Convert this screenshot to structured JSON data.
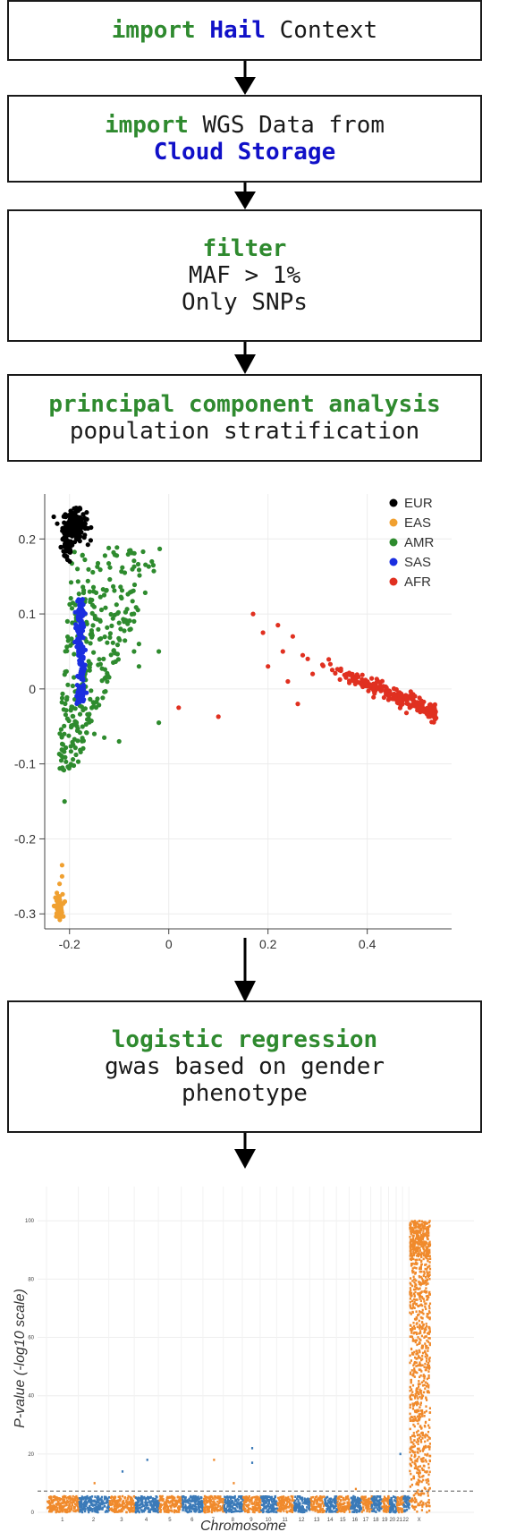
{
  "steps": [
    {
      "kw": "import",
      "rest": " ",
      "hl": "Hail",
      "tail": " Context"
    },
    {
      "kw": "import",
      "line1_rest": " WGS Data from",
      "line2": "Cloud Storage"
    },
    {
      "kw": "filter",
      "line2": "MAF > 1%",
      "line3": "Only SNPs"
    },
    {
      "kw": "principal component analysis",
      "line2": "population stratification"
    },
    {
      "kw": "logistic regression",
      "line2": "gwas based on gender",
      "line3": "phenotype"
    }
  ],
  "colors": {
    "EUR": "#000000",
    "EAS": "#f0a030",
    "AMR": "#2e8b2e",
    "SAS": "#1a2ee0",
    "AFR": "#e03020",
    "manh_blue": "#3b7ab8",
    "manh_orange": "#f08a2c"
  },
  "chart_data": [
    {
      "type": "scatter",
      "title": "",
      "xlabel": "",
      "ylabel": "",
      "xlim": [
        -0.25,
        0.57
      ],
      "ylim": [
        -0.32,
        0.26
      ],
      "x_ticks": [
        "-0.2",
        "0",
        "0.2",
        "0.4"
      ],
      "y_ticks": [
        "0.2",
        "0.1",
        "0",
        "-0.1",
        "-0.2",
        "-0.3"
      ],
      "legend": {
        "position": "top-right",
        "entries": [
          "EUR",
          "EAS",
          "AMR",
          "SAS",
          "AFR"
        ]
      },
      "grid": true,
      "series": [
        {
          "name": "EUR",
          "region": {
            "x": [
              -0.21,
              -0.15
            ],
            "y": [
              0.18,
              0.235
            ]
          }
        },
        {
          "name": "EAS",
          "region": {
            "x": [
              -0.23,
              -0.21
            ],
            "y": [
              -0.305,
              -0.235
            ]
          }
        },
        {
          "name": "AMR",
          "region": {
            "x": [
              -0.23,
              0.0
            ],
            "y": [
              -0.115,
              0.2
            ]
          }
        },
        {
          "name": "SAS",
          "region": {
            "x": [
              -0.185,
              -0.17
            ],
            "y": [
              -0.02,
              0.12
            ]
          }
        },
        {
          "name": "AFR",
          "region": {
            "x": [
              0.02,
              0.55
            ],
            "y": [
              -0.04,
              0.1
            ]
          }
        }
      ]
    },
    {
      "type": "scatter",
      "title": "",
      "xlabel": "Chromosome",
      "ylabel": "P-value (-log10 scale)",
      "ylim": [
        0,
        100
      ],
      "y_ticks": [
        "100",
        "80",
        "60",
        "40",
        "20",
        "0"
      ],
      "categories": [
        "1",
        "2",
        "3",
        "4",
        "5",
        "6",
        "7",
        "8",
        "9",
        "10",
        "11",
        "12",
        "13",
        "14",
        "15",
        "16",
        "17",
        "18",
        "19",
        "20",
        "21",
        "22",
        "X"
      ],
      "threshold": 7.3,
      "grid": true
    }
  ]
}
